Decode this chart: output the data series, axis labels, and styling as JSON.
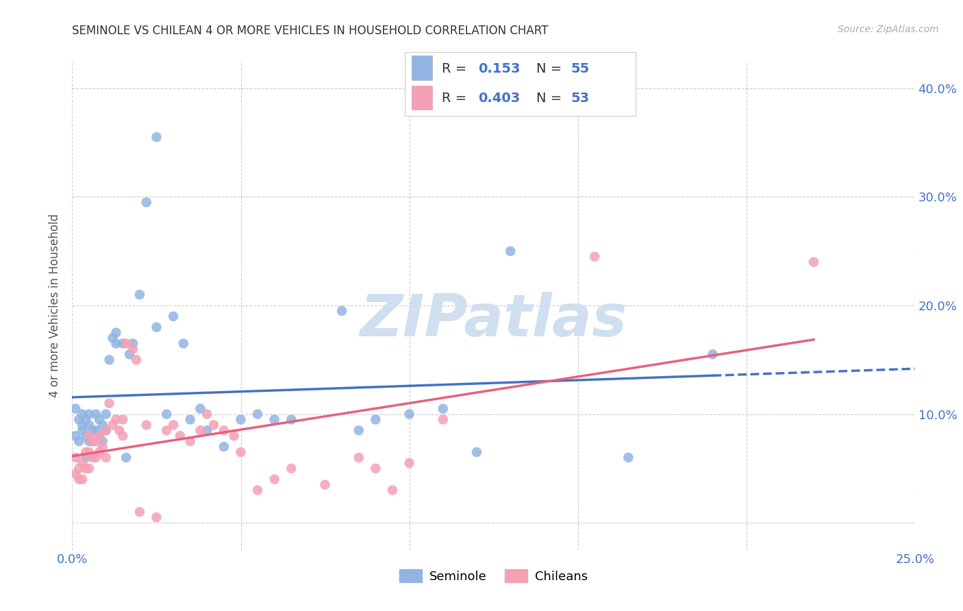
{
  "title": "SEMINOLE VS CHILEAN 4 OR MORE VEHICLES IN HOUSEHOLD CORRELATION CHART",
  "source": "Source: ZipAtlas.com",
  "ylabel": "4 or more Vehicles in Household",
  "xlim": [
    0.0,
    0.25
  ],
  "ylim": [
    -0.025,
    0.425
  ],
  "seminole_R": 0.153,
  "seminole_N": 55,
  "chilean_R": 0.403,
  "chilean_N": 53,
  "seminole_color": "#92b4e3",
  "chilean_color": "#f4a0b5",
  "seminole_line_color": "#4472c4",
  "chilean_line_color": "#e8607a",
  "background_color": "#ffffff",
  "grid_color": "#cccccc",
  "blue_text_color": "#4472c4",
  "watermark_color": "#d0dff0",
  "seminole_x": [
    0.001,
    0.001,
    0.002,
    0.002,
    0.003,
    0.003,
    0.003,
    0.004,
    0.004,
    0.004,
    0.005,
    0.005,
    0.005,
    0.006,
    0.006,
    0.007,
    0.007,
    0.008,
    0.008,
    0.009,
    0.009,
    0.01,
    0.01,
    0.011,
    0.012,
    0.013,
    0.013,
    0.015,
    0.016,
    0.017,
    0.018,
    0.02,
    0.022,
    0.025,
    0.025,
    0.028,
    0.03,
    0.033,
    0.035,
    0.038,
    0.04,
    0.045,
    0.05,
    0.055,
    0.06,
    0.065,
    0.08,
    0.085,
    0.09,
    0.1,
    0.11,
    0.12,
    0.13,
    0.165,
    0.19
  ],
  "seminole_y": [
    0.105,
    0.08,
    0.095,
    0.075,
    0.1,
    0.09,
    0.085,
    0.095,
    0.08,
    0.06,
    0.1,
    0.09,
    0.075,
    0.085,
    0.075,
    0.1,
    0.085,
    0.095,
    0.08,
    0.09,
    0.075,
    0.1,
    0.085,
    0.15,
    0.17,
    0.175,
    0.165,
    0.165,
    0.06,
    0.155,
    0.165,
    0.21,
    0.295,
    0.355,
    0.18,
    0.1,
    0.19,
    0.165,
    0.095,
    0.105,
    0.085,
    0.07,
    0.095,
    0.1,
    0.095,
    0.095,
    0.195,
    0.085,
    0.095,
    0.1,
    0.105,
    0.065,
    0.25,
    0.06,
    0.155
  ],
  "chilean_x": [
    0.001,
    0.001,
    0.002,
    0.002,
    0.003,
    0.003,
    0.004,
    0.004,
    0.005,
    0.005,
    0.005,
    0.006,
    0.006,
    0.007,
    0.007,
    0.008,
    0.008,
    0.009,
    0.01,
    0.01,
    0.011,
    0.012,
    0.013,
    0.014,
    0.015,
    0.015,
    0.016,
    0.018,
    0.019,
    0.02,
    0.022,
    0.025,
    0.028,
    0.03,
    0.032,
    0.035,
    0.038,
    0.04,
    0.042,
    0.045,
    0.048,
    0.05,
    0.055,
    0.06,
    0.065,
    0.075,
    0.085,
    0.09,
    0.095,
    0.1,
    0.11,
    0.155,
    0.22
  ],
  "chilean_y": [
    0.06,
    0.045,
    0.05,
    0.04,
    0.055,
    0.04,
    0.065,
    0.05,
    0.08,
    0.065,
    0.05,
    0.075,
    0.06,
    0.075,
    0.06,
    0.08,
    0.065,
    0.07,
    0.085,
    0.06,
    0.11,
    0.09,
    0.095,
    0.085,
    0.095,
    0.08,
    0.165,
    0.16,
    0.15,
    0.01,
    0.09,
    0.005,
    0.085,
    0.09,
    0.08,
    0.075,
    0.085,
    0.1,
    0.09,
    0.085,
    0.08,
    0.065,
    0.03,
    0.04,
    0.05,
    0.035,
    0.06,
    0.05,
    0.03,
    0.055,
    0.095,
    0.245,
    0.24
  ]
}
